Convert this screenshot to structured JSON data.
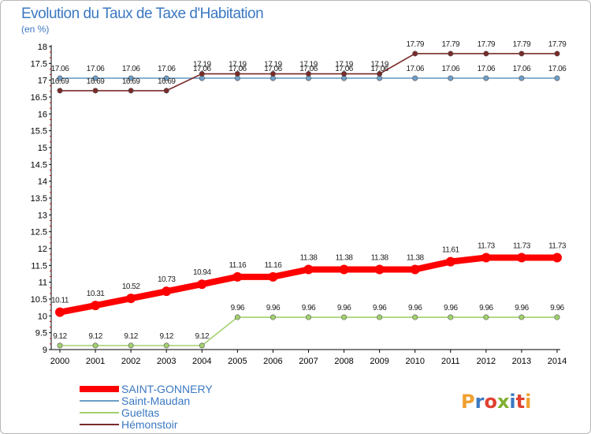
{
  "title": "Evolution du Taux de Taxe d'Habitation",
  "unit": "(en %)",
  "brand": "Proxiti",
  "chart_data": {
    "type": "line",
    "x": [
      2000,
      2001,
      2002,
      2003,
      2004,
      2005,
      2006,
      2007,
      2008,
      2009,
      2010,
      2011,
      2012,
      2013,
      2014
    ],
    "ylim": [
      9,
      18
    ],
    "ytick_step": 0.5,
    "grid": false,
    "legend_position": "bottom-left",
    "series": [
      {
        "name": "SAINT-GONNERY",
        "color": "#ff0000",
        "emphasis": true,
        "values": [
          10.11,
          10.31,
          10.52,
          10.73,
          10.94,
          11.16,
          11.16,
          11.38,
          11.38,
          11.38,
          11.38,
          11.61,
          11.73,
          11.73,
          11.73
        ]
      },
      {
        "name": "Saint-Maudan",
        "color": "#6e9fc8",
        "values": [
          17.06,
          17.06,
          17.06,
          17.06,
          17.06,
          17.06,
          17.06,
          17.06,
          17.06,
          17.06,
          17.06,
          17.06,
          17.06,
          17.06,
          17.06
        ]
      },
      {
        "name": "Gueltas",
        "color": "#a3d16e",
        "values": [
          9.12,
          9.12,
          9.12,
          9.12,
          9.12,
          9.96,
          9.96,
          9.96,
          9.96,
          9.96,
          9.96,
          9.96,
          9.96,
          9.96,
          9.96
        ]
      },
      {
        "name": "Hémonstoir",
        "color": "#7a2a2a",
        "values": [
          16.69,
          16.69,
          16.69,
          16.69,
          17.19,
          17.19,
          17.19,
          17.19,
          17.19,
          17.19,
          17.79,
          17.79,
          17.79,
          17.79,
          17.79
        ]
      }
    ]
  }
}
